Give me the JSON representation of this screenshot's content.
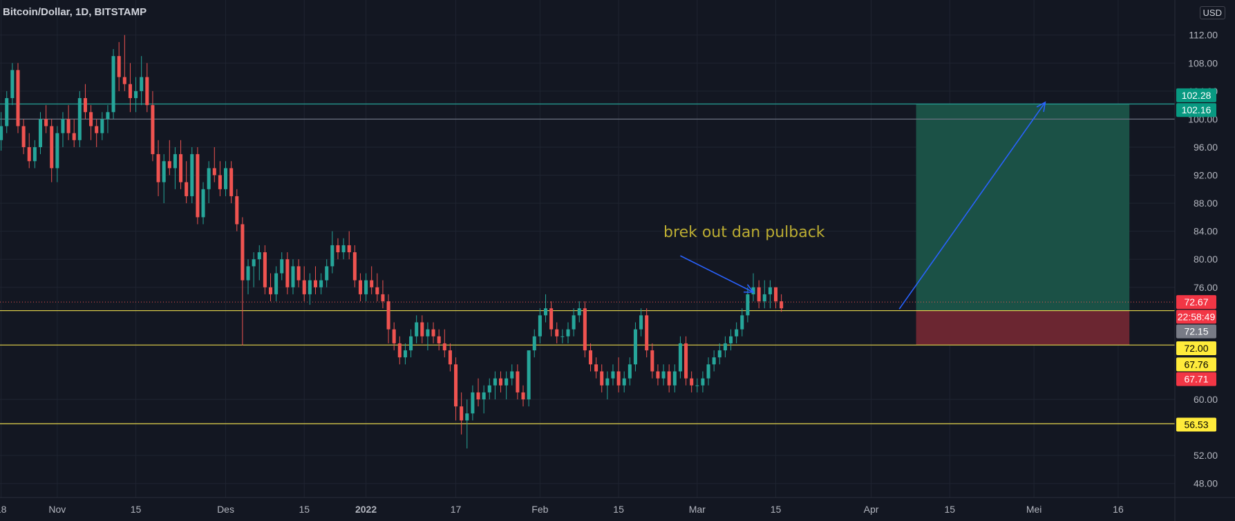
{
  "header": {
    "symbol": "Bitcoin/Dollar, 1D, BITSTAMP"
  },
  "currency_button": "USD",
  "colors": {
    "background": "#131722",
    "up": "#26a69a",
    "down": "#ef5350",
    "horizontal_line": "#e6d64d",
    "target_line": "#26a69a",
    "annotation": "#bcad32",
    "arrow": "#2962ff",
    "profit_zone": "#1b5146",
    "loss_zone": "#6b2631"
  },
  "chart_data": {
    "type": "candlestick",
    "title": "Bitcoin/Dollar, 1D, BITSTAMP",
    "y_axis": {
      "ticks": [
        "112.00",
        "108.00",
        "104.00",
        "100.00",
        "96.00",
        "92.00",
        "88.00",
        "84.00",
        "80.00",
        "76.00",
        "60.00",
        "52.00",
        "48.00"
      ],
      "range": [
        46,
        117
      ],
      "grid": true
    },
    "x_axis": {
      "labels": [
        {
          "label": "18",
          "day": -44
        },
        {
          "label": "Nov",
          "day": -34
        },
        {
          "label": "15",
          "day": -20
        },
        {
          "label": "Des",
          "day": -4
        },
        {
          "label": "15",
          "day": 10
        },
        {
          "label": "2022",
          "day": 21
        },
        {
          "label": "17",
          "day": 37
        },
        {
          "label": "Feb",
          "day": 52
        },
        {
          "label": "15",
          "day": 66
        },
        {
          "label": "Mar",
          "day": 80
        },
        {
          "label": "15",
          "day": 94
        },
        {
          "label": "Apr",
          "day": 111
        },
        {
          "label": "15",
          "day": 125
        },
        {
          "label": "Mei",
          "day": 140
        },
        {
          "label": "16",
          "day": 155
        }
      ],
      "range": [
        -44.2,
        165.1
      ],
      "grid": true
    },
    "horizontal_lines": [
      {
        "price": 72.67,
        "color": "#e6d64d"
      },
      {
        "price": 67.76,
        "color": "#e6d64d"
      },
      {
        "price": 56.53,
        "color": "#e6d64d"
      },
      {
        "price": 102.16,
        "color": "#26a69a"
      },
      {
        "price": 100.0,
        "color": "#6b7280"
      }
    ],
    "position": {
      "start_day": 119,
      "end_day": 157,
      "entry": 72.67,
      "target": 102.16,
      "stop": 67.76
    },
    "price_tags": [
      {
        "text": "102.28",
        "price": 103.4,
        "bg": "#089981",
        "fg": "#ffffff"
      },
      {
        "text": "102.16",
        "price": 101.3,
        "bg": "#089981",
        "fg": "#ffffff"
      },
      {
        "text": "72.67",
        "price": 73.9,
        "bg": "#f23645",
        "fg": "#ffffff"
      },
      {
        "text": "22:58:49",
        "price": 71.8,
        "bg": "#f23645",
        "fg": "#ffffff"
      },
      {
        "text": "72.15",
        "price": 69.7,
        "bg": "#787b86",
        "fg": "#ffffff"
      },
      {
        "text": "72.00",
        "price": 67.3,
        "bg": "#ffeb3b",
        "fg": "#000000"
      },
      {
        "text": "67.76",
        "price": 65.0,
        "bg": "#ffeb3b",
        "fg": "#000000"
      },
      {
        "text": "67.71",
        "price": 62.9,
        "bg": "#f23645",
        "fg": "#ffffff"
      },
      {
        "text": "56.53",
        "price": 56.4,
        "bg": "#ffeb3b",
        "fg": "#000000"
      }
    ],
    "annotations": [
      {
        "text": "brek out dan pulback",
        "day": 74,
        "price": 83.2
      }
    ],
    "arrows": [
      {
        "from": [
          77,
          80.5
        ],
        "to": [
          90,
          75.3
        ]
      },
      {
        "from": [
          116,
          72.9
        ],
        "to": [
          142,
          102.4
        ]
      }
    ],
    "candles": [
      [
        -44,
        97,
        101,
        95.5,
        99
      ],
      [
        -43,
        99,
        104,
        98,
        103
      ],
      [
        -42,
        103,
        108,
        102,
        107
      ],
      [
        -41,
        107,
        108,
        98,
        99
      ],
      [
        -40,
        99,
        100,
        95,
        96
      ],
      [
        -39,
        96,
        98,
        93,
        94
      ],
      [
        -38,
        94,
        97,
        93,
        96
      ],
      [
        -37,
        96,
        101,
        95,
        100
      ],
      [
        -36,
        100,
        102,
        98,
        99
      ],
      [
        -35,
        99,
        100,
        91,
        93
      ],
      [
        -34,
        93,
        99,
        91,
        98
      ],
      [
        -33,
        98,
        101,
        96,
        100
      ],
      [
        -32,
        100,
        102,
        97,
        98
      ],
      [
        -31,
        98,
        100,
        96,
        97
      ],
      [
        -30,
        97,
        104,
        96,
        103
      ],
      [
        -29,
        103,
        105,
        100,
        101
      ],
      [
        -28,
        101,
        102,
        97,
        99
      ],
      [
        -27,
        99,
        100,
        96,
        98
      ],
      [
        -26,
        98,
        101,
        97,
        100
      ],
      [
        -25,
        100,
        102,
        98,
        101
      ],
      [
        -24,
        101,
        110,
        100,
        109
      ],
      [
        -23,
        109,
        111,
        104,
        106
      ],
      [
        -22,
        106,
        112,
        104,
        105
      ],
      [
        -21,
        105,
        108,
        101,
        103
      ],
      [
        -20,
        103,
        106,
        101,
        104
      ],
      [
        -19,
        104,
        109,
        102,
        106
      ],
      [
        -18,
        106,
        108,
        101,
        102
      ],
      [
        -17,
        102,
        104,
        94,
        95
      ],
      [
        -16,
        95,
        97,
        89,
        91
      ],
      [
        -15,
        91,
        95,
        88,
        94
      ],
      [
        -14,
        94,
        97,
        92,
        93
      ],
      [
        -13,
        93,
        96,
        90,
        95
      ],
      [
        -12,
        95,
        97,
        90,
        91
      ],
      [
        -11,
        91,
        94,
        88,
        89
      ],
      [
        -10,
        89,
        96,
        88,
        95
      ],
      [
        -9,
        95,
        96,
        85,
        86
      ],
      [
        -8,
        86,
        91,
        85,
        90
      ],
      [
        -7,
        90,
        94,
        88,
        93
      ],
      [
        -6,
        93,
        96,
        91,
        92
      ],
      [
        -5,
        92,
        94,
        89,
        90
      ],
      [
        -4,
        90,
        94,
        89,
        93
      ],
      [
        -3,
        93,
        94,
        88,
        89
      ],
      [
        -2,
        89,
        90,
        84,
        85
      ],
      [
        -1,
        85,
        86,
        67.7,
        77
      ],
      [
        0,
        77,
        80,
        75,
        79
      ],
      [
        1,
        79,
        81,
        76,
        80
      ],
      [
        2,
        80,
        82,
        77,
        81
      ],
      [
        3,
        81,
        82,
        75,
        76
      ],
      [
        4,
        76,
        78,
        74,
        75
      ],
      [
        5,
        75,
        79,
        74,
        78
      ],
      [
        6,
        78,
        81,
        77,
        80
      ],
      [
        7,
        80,
        81,
        75,
        76
      ],
      [
        8,
        76,
        80,
        75,
        79
      ],
      [
        9,
        79,
        80,
        76,
        77
      ],
      [
        10,
        77,
        79,
        74,
        75
      ],
      [
        11,
        75,
        78,
        73.5,
        77
      ],
      [
        12,
        77,
        79,
        75,
        76
      ],
      [
        13,
        76,
        78,
        75,
        77
      ],
      [
        14,
        77,
        80,
        76,
        79
      ],
      [
        15,
        79,
        84,
        78,
        82
      ],
      [
        16,
        82,
        83,
        80,
        81
      ],
      [
        17,
        81,
        83,
        80,
        82
      ],
      [
        18,
        82,
        84,
        80,
        81
      ],
      [
        19,
        81,
        82,
        76,
        77
      ],
      [
        20,
        77,
        78,
        74,
        75
      ],
      [
        21,
        75,
        78,
        74,
        77
      ],
      [
        22,
        77,
        79,
        75,
        76
      ],
      [
        23,
        76,
        78,
        74,
        75
      ],
      [
        24,
        75,
        77,
        73,
        74
      ],
      [
        25,
        74,
        75,
        68,
        70
      ],
      [
        26,
        70,
        71,
        67,
        68
      ],
      [
        27,
        68,
        69,
        65,
        66
      ],
      [
        28,
        66,
        68,
        65,
        67
      ],
      [
        29,
        67,
        70,
        66,
        69
      ],
      [
        30,
        69,
        72,
        68,
        71
      ],
      [
        31,
        71,
        72,
        68,
        69
      ],
      [
        32,
        69,
        71,
        67,
        70
      ],
      [
        33,
        70,
        71,
        68,
        69
      ],
      [
        34,
        69,
        70,
        67,
        68
      ],
      [
        35,
        68,
        70,
        66,
        67
      ],
      [
        36,
        67,
        68,
        64,
        65
      ],
      [
        37,
        65,
        66,
        57,
        59
      ],
      [
        38,
        59,
        61,
        55,
        57
      ],
      [
        39,
        57,
        60,
        53,
        58
      ],
      [
        40,
        58,
        62,
        57,
        61
      ],
      [
        41,
        61,
        63,
        59,
        60
      ],
      [
        42,
        60,
        62,
        58,
        61
      ],
      [
        43,
        61,
        63,
        60,
        62
      ],
      [
        44,
        62,
        64,
        60,
        63
      ],
      [
        45,
        63,
        64,
        61,
        62
      ],
      [
        46,
        62,
        64,
        60,
        63
      ],
      [
        47,
        63,
        65,
        62,
        64
      ],
      [
        48,
        64,
        65,
        60,
        61
      ],
      [
        49,
        61,
        62,
        59,
        60
      ],
      [
        50,
        60,
        67,
        59,
        67
      ],
      [
        51,
        67,
        70,
        66,
        69
      ],
      [
        52,
        69,
        73,
        68,
        72
      ],
      [
        53,
        72,
        75,
        71,
        73
      ],
      [
        54,
        73,
        74,
        69,
        70
      ],
      [
        55,
        70,
        71,
        68,
        69
      ],
      [
        56,
        69,
        70,
        68,
        69
      ],
      [
        57,
        69,
        71,
        68,
        70
      ],
      [
        58,
        70,
        73,
        69,
        72
      ],
      [
        59,
        72,
        74,
        71,
        73
      ],
      [
        60,
        73,
        74,
        66,
        67
      ],
      [
        61,
        67,
        68,
        64,
        65
      ],
      [
        62,
        65,
        66,
        63,
        64
      ],
      [
        63,
        64,
        65,
        61,
        62
      ],
      [
        64,
        62,
        64,
        60,
        63
      ],
      [
        65,
        63,
        65,
        62,
        64
      ],
      [
        66,
        64,
        66,
        61,
        62
      ],
      [
        67,
        62,
        64,
        61,
        63
      ],
      [
        68,
        63,
        66,
        62,
        65
      ],
      [
        69,
        65,
        71,
        64,
        70
      ],
      [
        70,
        70,
        73,
        69,
        72
      ],
      [
        71,
        72,
        73,
        66,
        67
      ],
      [
        72,
        67,
        68,
        63,
        64
      ],
      [
        73,
        64,
        65,
        62,
        63
      ],
      [
        74,
        63,
        65,
        62,
        64
      ],
      [
        75,
        64,
        65,
        61,
        62
      ],
      [
        76,
        62,
        65,
        61,
        64
      ],
      [
        77,
        64,
        69,
        63,
        68
      ],
      [
        78,
        68,
        69,
        62,
        63
      ],
      [
        79,
        63,
        64,
        61,
        62
      ],
      [
        80,
        62,
        63,
        61,
        62
      ],
      [
        81,
        62,
        64,
        61,
        63
      ],
      [
        82,
        63,
        66,
        62,
        65
      ],
      [
        83,
        65,
        67,
        64,
        66
      ],
      [
        84,
        66,
        68,
        65,
        67
      ],
      [
        85,
        67,
        69,
        66,
        68
      ],
      [
        86,
        68,
        70,
        67,
        69
      ],
      [
        87,
        69,
        71,
        68,
        70
      ],
      [
        88,
        70,
        73,
        69,
        72
      ],
      [
        89,
        72,
        76,
        71,
        75
      ],
      [
        90,
        75,
        78,
        74,
        76
      ],
      [
        91,
        76,
        77,
        73,
        74
      ],
      [
        92,
        74,
        77,
        73,
        75
      ],
      [
        93,
        75,
        77,
        73,
        76
      ],
      [
        94,
        76,
        76,
        73,
        74
      ],
      [
        95,
        74,
        75,
        72.5,
        73
      ]
    ]
  }
}
